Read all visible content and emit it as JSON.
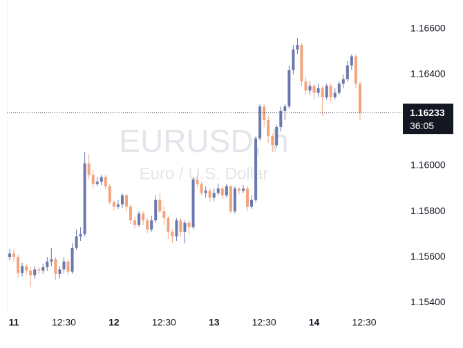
{
  "chart_data": {
    "type": "candlestick",
    "watermark_title": "EURUSD, h",
    "watermark_subtitle": "Euro / U.S. Dollar",
    "categories": [
      null,
      "11",
      null,
      null,
      null,
      null,
      null,
      null,
      null,
      null,
      null,
      null,
      null,
      "12:30",
      null,
      null,
      null,
      null,
      null,
      null,
      null,
      null,
      null,
      null,
      null,
      "12",
      null,
      null,
      null,
      null,
      null,
      null,
      null,
      null,
      null,
      null,
      null,
      "12:30",
      null,
      null,
      null,
      null,
      null,
      null,
      null,
      null,
      null,
      null,
      null,
      "13",
      null,
      null,
      null,
      null,
      null,
      null,
      null,
      null,
      null,
      null,
      null,
      "12:30",
      null,
      null,
      null,
      null,
      null,
      null,
      null,
      null,
      null,
      null,
      null,
      "14",
      null,
      null,
      null,
      null,
      null,
      null,
      null,
      null,
      null,
      null,
      null,
      "12:30"
    ],
    "open": [
      1.156,
      1.15615,
      1.156,
      1.1553,
      1.1556,
      1.1554,
      1.1552,
      1.15545,
      1.1554,
      1.15555,
      1.1558,
      1.1559,
      1.15525,
      1.15545,
      1.1558,
      1.15535,
      1.1564,
      1.1569,
      1.157,
      1.1601,
      1.1596,
      1.1592,
      1.1593,
      1.1595,
      1.1591,
      1.1584,
      1.1582,
      1.1583,
      1.1587,
      1.1582,
      1.1576,
      1.1574,
      1.1579,
      1.1576,
      1.1572,
      1.1576,
      1.1585,
      1.158,
      1.1577,
      1.1571,
      1.1569,
      1.1576,
      1.1571,
      1.1575,
      1.1573,
      1.1594,
      1.1592,
      1.1588,
      1.1589,
      1.1586,
      1.1588,
      1.159,
      1.1587,
      1.1591,
      1.158,
      1.159,
      1.1589,
      1.159,
      1.1582,
      1.1585,
      1.1612,
      1.1626,
      1.162,
      1.1613,
      1.1609,
      1.1617,
      1.1624,
      1.1626,
      1.1642,
      1.1651,
      1.1653,
      1.1637,
      1.1633,
      1.1635,
      1.1632,
      1.1634,
      1.163,
      1.1635,
      1.163,
      1.1632,
      1.1636,
      1.1638,
      1.1644,
      1.1648,
      1.1636,
      null
    ],
    "high": [
      1.15635,
      1.15635,
      1.1561,
      1.15575,
      1.1557,
      1.15555,
      1.1556,
      1.15555,
      1.1557,
      1.156,
      1.1564,
      1.156,
      1.1556,
      1.156,
      1.1559,
      1.1566,
      1.1572,
      1.1573,
      1.1606,
      1.1605,
      1.1598,
      1.1595,
      1.1596,
      1.1596,
      1.1592,
      1.1585,
      1.1585,
      1.1588,
      1.15875,
      1.1583,
      1.15775,
      1.158,
      1.158,
      1.1577,
      1.1578,
      1.1587,
      1.1588,
      1.1582,
      1.1578,
      1.1572,
      1.1577,
      1.1577,
      1.1576,
      1.1576,
      1.1595,
      1.1596,
      1.1593,
      1.1591,
      1.159,
      1.159,
      1.1592,
      1.1591,
      1.1592,
      1.15915,
      1.1591,
      1.15905,
      1.15915,
      1.1591,
      1.1587,
      1.1613,
      1.1627,
      1.1627,
      1.1622,
      1.1614,
      1.1618,
      1.1626,
      1.1627,
      1.1644,
      1.1653,
      1.1656,
      1.1654,
      1.1639,
      1.1637,
      1.1636,
      1.1636,
      1.1635,
      1.1636,
      1.1636,
      1.1634,
      1.1637,
      1.164,
      1.1646,
      1.1649,
      1.1649,
      1.1637,
      null
    ],
    "low": [
      1.15585,
      1.1558,
      1.1551,
      1.15515,
      1.1552,
      1.1547,
      1.15505,
      1.15525,
      1.15525,
      1.1554,
      1.1556,
      1.155,
      1.15505,
      1.1553,
      1.1552,
      1.15525,
      1.1563,
      1.1567,
      1.1569,
      1.1594,
      1.159,
      1.1591,
      1.15915,
      1.15895,
      1.1583,
      1.15805,
      1.1581,
      1.15815,
      1.158,
      1.15745,
      1.15725,
      1.1573,
      1.1574,
      1.15705,
      1.1571,
      1.1575,
      1.1579,
      1.1574,
      1.1568,
      1.1566,
      1.1567,
      1.1569,
      1.1566,
      1.157,
      1.1572,
      1.15905,
      1.1587,
      1.1586,
      1.1584,
      1.15845,
      1.1587,
      1.15855,
      1.1586,
      1.1579,
      1.1579,
      1.15875,
      1.1588,
      1.158,
      1.1581,
      1.1584,
      1.1611,
      1.1617,
      1.161,
      1.1606,
      1.1608,
      1.1615,
      1.162,
      1.1625,
      1.164,
      1.1649,
      1.1635,
      1.1631,
      1.1631,
      1.1629,
      1.163,
      1.1622,
      1.1629,
      1.1628,
      1.1629,
      1.1631,
      1.1634,
      1.1637,
      1.1642,
      1.1634,
      1.162,
      null
    ],
    "close": [
      1.15615,
      1.156,
      1.1553,
      1.1556,
      1.1554,
      1.1552,
      1.15545,
      1.1554,
      1.15555,
      1.1558,
      1.1559,
      1.15525,
      1.15545,
      1.1558,
      1.15535,
      1.1564,
      1.1569,
      1.157,
      1.1601,
      1.1596,
      1.1592,
      1.1593,
      1.1595,
      1.1591,
      1.1584,
      1.1582,
      1.1583,
      1.1587,
      1.1582,
      1.1576,
      1.1574,
      1.1579,
      1.1576,
      1.1572,
      1.1576,
      1.1585,
      1.158,
      1.1577,
      1.1571,
      1.1569,
      1.1576,
      1.1571,
      1.1575,
      1.1573,
      1.1594,
      1.1592,
      1.1588,
      1.1589,
      1.1586,
      1.1588,
      1.159,
      1.1587,
      1.1591,
      1.158,
      1.159,
      1.1589,
      1.159,
      1.1582,
      1.1585,
      1.1612,
      1.1626,
      1.162,
      1.1613,
      1.1609,
      1.1617,
      1.1624,
      1.1626,
      1.1642,
      1.1651,
      1.1653,
      1.1637,
      1.1633,
      1.1635,
      1.1632,
      1.1634,
      1.163,
      1.1635,
      1.163,
      1.1632,
      1.1636,
      1.1638,
      1.1644,
      1.1648,
      1.1636,
      1.16233,
      null
    ],
    "up_color": "#6b78ae",
    "down_color": "#f4a47c",
    "ylim": [
      1.15358,
      1.16727
    ],
    "yticks": [
      {
        "value": 1.154,
        "label": "1.15400"
      },
      {
        "value": 1.156,
        "label": "1.15600"
      },
      {
        "value": 1.158,
        "label": "1.15800"
      },
      {
        "value": 1.16,
        "label": "1.16000"
      },
      {
        "value": 1.164,
        "label": "1.16400"
      },
      {
        "value": 1.166,
        "label": "1.16600"
      }
    ],
    "last_price": 1.16233,
    "countdown": "36:05"
  }
}
